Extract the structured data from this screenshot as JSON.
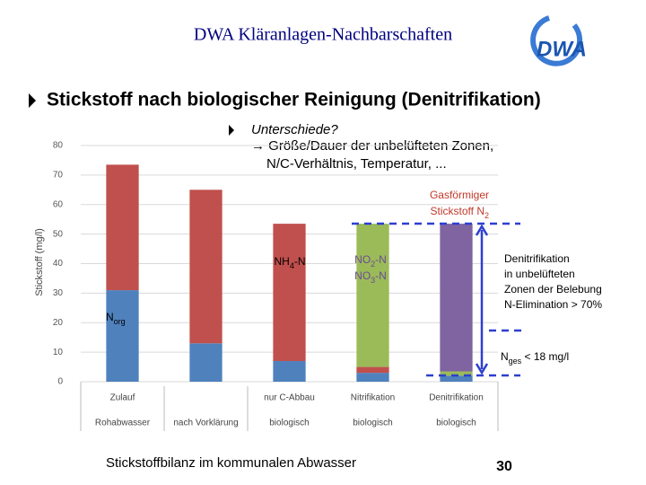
{
  "slide": {
    "header": "DWA Kläranlagen-Nachbarschaften",
    "logo": "DWA",
    "heading": "Stickstoff nach biologischer Reinigung (Denitrifikation)",
    "bullet": "Unterschiede?",
    "bullet_lines": [
      "→ Größe/Dauer der unbelüfteten Zonen,",
      "N/C-Verhältnis, Temperatur, ..."
    ],
    "footer": "Stickstoffbilanz im kommunalen Abwasser",
    "page": "30",
    "annotations": [
      {
        "color": "#c0392b",
        "lines": [
          [
            {
              "text": "Gasförmiger"
            }
          ],
          [
            {
              "text": "Stickstoff N"
            },
            {
              "sub": "2"
            }
          ]
        ]
      },
      {
        "color": "#000000",
        "lines": [
          [
            {
              "text": "NH"
            },
            {
              "sub": "4"
            },
            {
              "text": "-N"
            }
          ]
        ]
      },
      {
        "color": "#6a4c93",
        "lines": [
          [
            {
              "text": "NO"
            },
            {
              "sub": "2"
            },
            {
              "text": "-N"
            }
          ],
          [
            {
              "text": "NO"
            },
            {
              "sub": "3"
            },
            {
              "text": "-N"
            }
          ]
        ]
      },
      {
        "color": "#000000",
        "lines": [
          [
            {
              "text": "N"
            },
            {
              "sub": "org"
            }
          ]
        ]
      },
      {
        "color": "#000000",
        "lines": [
          [
            {
              "text": "Denitrifikation"
            }
          ],
          [
            {
              "text": "in unbelüfteten"
            }
          ],
          [
            {
              "text": "Zonen der Belebung"
            }
          ],
          [
            {
              "text": "N-Elimination > 70%"
            }
          ]
        ]
      },
      {
        "color": "#000000",
        "lines": [
          [
            {
              "text": "N"
            },
            {
              "sub": "ges"
            },
            {
              "text": " < 18 mg/l"
            }
          ]
        ]
      }
    ]
  },
  "chart_data": {
    "type": "stacked_bar",
    "ylabel": "Stickstoff (mg/l)",
    "categories": [
      "Zulauf",
      null,
      "nur C-Abbau",
      "Nitrifikation",
      "Denitrifikation"
    ],
    "sub_categories": [
      "Rohabwasser",
      "nach Vorklärung",
      "biologisch",
      "biologisch",
      "biologisch"
    ],
    "series": [
      {
        "color": "#4f81bd",
        "values": [
          31,
          13,
          7,
          3,
          2
        ]
      },
      {
        "color": "#c0504d",
        "values": [
          42.5,
          52,
          46.5,
          2,
          null
        ]
      },
      {
        "color": "#9bbb59",
        "values": [
          null,
          null,
          null,
          48.5,
          1.5
        ]
      },
      {
        "color": "#8064a2",
        "values": [
          null,
          null,
          null,
          null,
          50
        ]
      }
    ],
    "ylim": [
      0,
      80
    ],
    "yticks": [
      0,
      10,
      20,
      30,
      40,
      50,
      60,
      70,
      80
    ],
    "grid": true
  }
}
